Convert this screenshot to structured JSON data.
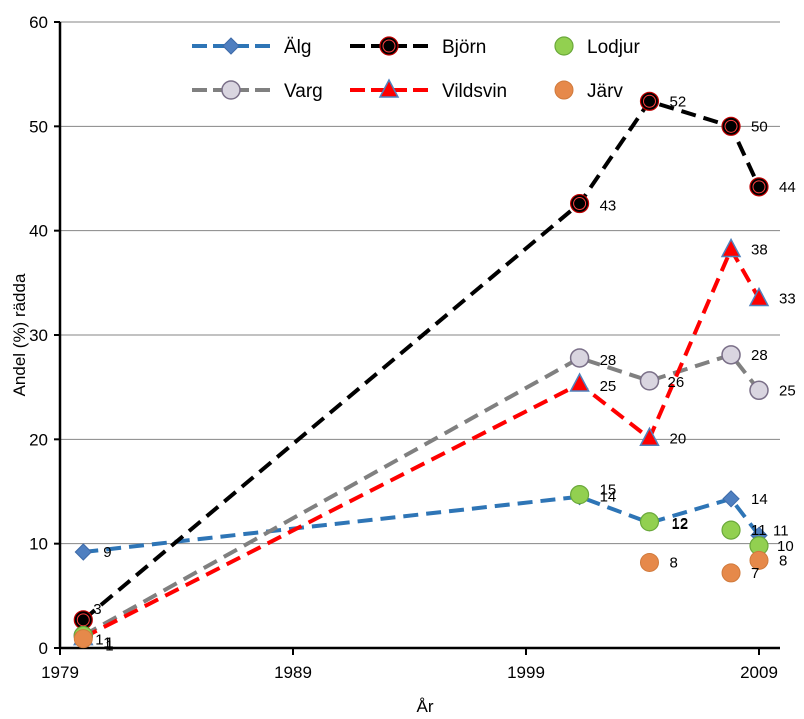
{
  "chart_data": {
    "type": "line",
    "xlabel": "År",
    "ylabel": "Andel (%) rädda",
    "xlim": [
      1979,
      2009
    ],
    "ylim": [
      0,
      60
    ],
    "x_ticks": [
      "1979",
      "1989",
      "1999",
      "2009"
    ],
    "y_ticks": [
      "0",
      "10",
      "20",
      "30",
      "40",
      "50",
      "60"
    ],
    "grid": "horizontal",
    "legend": "top",
    "series": [
      {
        "name": "Älg",
        "color": "#2e75b6",
        "style": "dashed",
        "marker": "diamond",
        "points": [
          [
            1980,
            9.2,
            "9"
          ],
          [
            2001.3,
            14.5,
            "14"
          ],
          [
            2004.3,
            12,
            "12"
          ],
          [
            2007.8,
            14.3,
            "14"
          ],
          [
            2009,
            10.8,
            "11"
          ]
        ]
      },
      {
        "name": "Björn",
        "color": "#000000",
        "style": "dashed",
        "marker": "circle-red",
        "points": [
          [
            1980,
            2.7,
            "3"
          ],
          [
            2001.3,
            42.6,
            "43"
          ],
          [
            2004.3,
            52.4,
            "52"
          ],
          [
            2007.8,
            50,
            "50"
          ],
          [
            2009,
            44.2,
            "44"
          ]
        ]
      },
      {
        "name": "Lodjur",
        "color": "#92d050",
        "style": "none",
        "marker": "circle-green",
        "points": [
          [
            1980,
            1.2,
            "1"
          ],
          [
            2001.3,
            14.7,
            "15"
          ],
          [
            2004.3,
            12.1,
            "12"
          ],
          [
            2007.8,
            11.3,
            "11"
          ],
          [
            2009,
            9.8,
            "10"
          ]
        ]
      },
      {
        "name": "Varg",
        "color": "#808080",
        "style": "dashed",
        "marker": "circle-gray",
        "points": [
          [
            1980,
            1.2,
            "1"
          ],
          [
            2001.3,
            27.8,
            "28"
          ],
          [
            2004.3,
            25.6,
            "26"
          ],
          [
            2007.8,
            28.1,
            "28"
          ],
          [
            2009,
            24.7,
            "25"
          ]
        ]
      },
      {
        "name": "Vildsvin",
        "color": "#ff0000",
        "style": "dashed",
        "marker": "triangle",
        "points": [
          [
            1980,
            1.0,
            "1"
          ],
          [
            2001.3,
            25.3,
            "25"
          ],
          [
            2004.3,
            20.1,
            "20"
          ],
          [
            2007.8,
            38.2,
            "38"
          ],
          [
            2009,
            33.5,
            "33"
          ]
        ]
      },
      {
        "name": "Järv",
        "color": "#e6894a",
        "style": "none",
        "marker": "circle-orange",
        "points": [
          [
            1980,
            0.9,
            "1"
          ],
          [
            2004.3,
            8.2,
            "8"
          ],
          [
            2007.8,
            7.2,
            "7"
          ],
          [
            2009,
            8.4,
            "8"
          ]
        ]
      }
    ]
  }
}
